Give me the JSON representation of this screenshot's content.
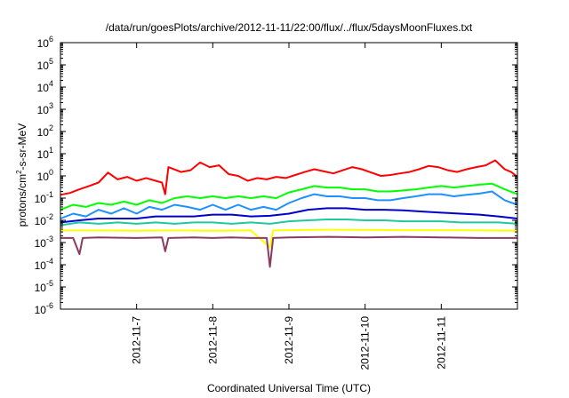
{
  "chart_data": {
    "type": "line",
    "title": "/data/run/goesPlots/archive/2012-11-11/22:00/flux/../flux/5daysMoonFluxes.txt",
    "xlabel": "Coordinated Universal Time (UTC)",
    "ylabel": "protons/cm2-s-sr-MeV",
    "ylabel_parts": {
      "pre": "protons/cm",
      "sup": "2",
      "post": "-s-sr-MeV"
    },
    "xlim": [
      "2012-11-06T00:00",
      "2012-11-12T00:00"
    ],
    "ylim": [
      1e-06,
      1000000.0
    ],
    "yscale": "log",
    "x_ticks": [
      {
        "x": "2012-11-07",
        "label": "2012-11-7"
      },
      {
        "x": "2012-11-08",
        "label": "2012-11-8"
      },
      {
        "x": "2012-11-09",
        "label": "2012-11-9"
      },
      {
        "x": "2012-11-10",
        "label": "2012-11-10"
      },
      {
        "x": "2012-11-11",
        "label": "2012-11-11"
      }
    ],
    "y_ticks": [
      {
        "value": 1e-06,
        "base": "10",
        "exp": "-6"
      },
      {
        "value": 1e-05,
        "base": "10",
        "exp": "-5"
      },
      {
        "value": 0.0001,
        "base": "10",
        "exp": "-4"
      },
      {
        "value": 0.001,
        "base": "10",
        "exp": "-3"
      },
      {
        "value": 0.01,
        "base": "10",
        "exp": "-2"
      },
      {
        "value": 0.1,
        "base": "10",
        "exp": "-1"
      },
      {
        "value": 1,
        "base": "10",
        "exp": "0"
      },
      {
        "value": 10,
        "base": "10",
        "exp": "1"
      },
      {
        "value": 100,
        "base": "10",
        "exp": "2"
      },
      {
        "value": 1000,
        "base": "10",
        "exp": "3"
      },
      {
        "value": 10000,
        "base": "10",
        "exp": "4"
      },
      {
        "value": 100000,
        "base": "10",
        "exp": "5"
      },
      {
        "value": 1000000,
        "base": "10",
        "exp": "6"
      }
    ],
    "grid": false,
    "legend": "none",
    "series": [
      {
        "color": "#ff0000",
        "points": [
          [
            "2012-11-06T00:00",
            0.14
          ],
          [
            "2012-11-06T03:00",
            0.17
          ],
          [
            "2012-11-06T06:00",
            0.25
          ],
          [
            "2012-11-06T09:00",
            0.35
          ],
          [
            "2012-11-06T12:00",
            0.5
          ],
          [
            "2012-11-06T15:00",
            1.4
          ],
          [
            "2012-11-06T18:00",
            0.7
          ],
          [
            "2012-11-06T21:00",
            0.9
          ],
          [
            "2012-11-07T00:00",
            0.6
          ],
          [
            "2012-11-07T03:00",
            0.8
          ],
          [
            "2012-11-07T06:00",
            0.6
          ],
          [
            "2012-11-07T08:00",
            0.5
          ],
          [
            "2012-11-07T09:00",
            0.15
          ],
          [
            "2012-11-07T10:00",
            2.5
          ],
          [
            "2012-11-07T14:00",
            1.5
          ],
          [
            "2012-11-07T17:00",
            1.8
          ],
          [
            "2012-11-07T20:00",
            4.0
          ],
          [
            "2012-11-07T23:00",
            2.5
          ],
          [
            "2012-11-08T02:00",
            3.0
          ],
          [
            "2012-11-08T05:00",
            1.2
          ],
          [
            "2012-11-08T08:00",
            1.0
          ],
          [
            "2012-11-08T11:00",
            0.6
          ],
          [
            "2012-11-08T14:00",
            0.8
          ],
          [
            "2012-11-08T17:00",
            0.7
          ],
          [
            "2012-11-08T20:00",
            0.9
          ],
          [
            "2012-11-08T23:00",
            0.8
          ],
          [
            "2012-11-09T02:00",
            1.1
          ],
          [
            "2012-11-09T05:00",
            1.5
          ],
          [
            "2012-11-09T08:00",
            2.0
          ],
          [
            "2012-11-09T11:00",
            1.6
          ],
          [
            "2012-11-09T14:00",
            1.3
          ],
          [
            "2012-11-09T17:00",
            1.8
          ],
          [
            "2012-11-09T20:00",
            2.5
          ],
          [
            "2012-11-09T23:00",
            2.0
          ],
          [
            "2012-11-10T02:00",
            1.4
          ],
          [
            "2012-11-10T05:00",
            1.0
          ],
          [
            "2012-11-10T08:00",
            1.1
          ],
          [
            "2012-11-10T11:00",
            1.3
          ],
          [
            "2012-11-10T14:00",
            1.5
          ],
          [
            "2012-11-10T17:00",
            2.0
          ],
          [
            "2012-11-10T20:00",
            2.8
          ],
          [
            "2012-11-10T23:00",
            2.5
          ],
          [
            "2012-11-11T02:00",
            1.8
          ],
          [
            "2012-11-11T05:00",
            1.5
          ],
          [
            "2012-11-11T08:00",
            2.0
          ],
          [
            "2012-11-11T11:00",
            2.5
          ],
          [
            "2012-11-11T14:00",
            3.0
          ],
          [
            "2012-11-11T17:00",
            5.0
          ],
          [
            "2012-11-11T20:00",
            2.0
          ],
          [
            "2012-11-11T22:00",
            1.5
          ],
          [
            "2012-11-12T00:00",
            0.9
          ]
        ]
      },
      {
        "color": "#00ff00",
        "points": [
          [
            "2012-11-06T00:00",
            0.03
          ],
          [
            "2012-11-06T04:00",
            0.05
          ],
          [
            "2012-11-06T08:00",
            0.04
          ],
          [
            "2012-11-06T12:00",
            0.06
          ],
          [
            "2012-11-06T16:00",
            0.05
          ],
          [
            "2012-11-06T20:00",
            0.07
          ],
          [
            "2012-11-07T00:00",
            0.05
          ],
          [
            "2012-11-07T04:00",
            0.08
          ],
          [
            "2012-11-07T08:00",
            0.06
          ],
          [
            "2012-11-07T12:00",
            0.1
          ],
          [
            "2012-11-07T16:00",
            0.12
          ],
          [
            "2012-11-07T20:00",
            0.1
          ],
          [
            "2012-11-08T00:00",
            0.12
          ],
          [
            "2012-11-08T04:00",
            0.1
          ],
          [
            "2012-11-08T08:00",
            0.12
          ],
          [
            "2012-11-08T12:00",
            0.1
          ],
          [
            "2012-11-08T16:00",
            0.12
          ],
          [
            "2012-11-08T20:00",
            0.1
          ],
          [
            "2012-11-09T00:00",
            0.18
          ],
          [
            "2012-11-09T04:00",
            0.25
          ],
          [
            "2012-11-09T08:00",
            0.35
          ],
          [
            "2012-11-09T12:00",
            0.3
          ],
          [
            "2012-11-09T16:00",
            0.3
          ],
          [
            "2012-11-09T20:00",
            0.25
          ],
          [
            "2012-11-10T00:00",
            0.25
          ],
          [
            "2012-11-10T04:00",
            0.2
          ],
          [
            "2012-11-10T08:00",
            0.2
          ],
          [
            "2012-11-10T12:00",
            0.22
          ],
          [
            "2012-11-10T16:00",
            0.25
          ],
          [
            "2012-11-10T20:00",
            0.3
          ],
          [
            "2012-11-11T00:00",
            0.35
          ],
          [
            "2012-11-11T04:00",
            0.3
          ],
          [
            "2012-11-11T08:00",
            0.35
          ],
          [
            "2012-11-11T12:00",
            0.4
          ],
          [
            "2012-11-11T16:00",
            0.45
          ],
          [
            "2012-11-11T20:00",
            0.25
          ],
          [
            "2012-11-12T00:00",
            0.15
          ]
        ]
      },
      {
        "color": "#1e90ff",
        "points": [
          [
            "2012-11-06T00:00",
            0.012
          ],
          [
            "2012-11-06T04:00",
            0.02
          ],
          [
            "2012-11-06T08:00",
            0.015
          ],
          [
            "2012-11-06T12:00",
            0.03
          ],
          [
            "2012-11-06T16:00",
            0.02
          ],
          [
            "2012-11-06T20:00",
            0.035
          ],
          [
            "2012-11-07T00:00",
            0.02
          ],
          [
            "2012-11-07T04:00",
            0.04
          ],
          [
            "2012-11-07T08:00",
            0.03
          ],
          [
            "2012-11-07T12:00",
            0.05
          ],
          [
            "2012-11-07T16:00",
            0.04
          ],
          [
            "2012-11-07T20:00",
            0.03
          ],
          [
            "2012-11-08T00:00",
            0.05
          ],
          [
            "2012-11-08T04:00",
            0.03
          ],
          [
            "2012-11-08T08:00",
            0.05
          ],
          [
            "2012-11-08T12:00",
            0.03
          ],
          [
            "2012-11-08T16:00",
            0.04
          ],
          [
            "2012-11-08T20:00",
            0.03
          ],
          [
            "2012-11-09T00:00",
            0.06
          ],
          [
            "2012-11-09T04:00",
            0.1
          ],
          [
            "2012-11-09T08:00",
            0.15
          ],
          [
            "2012-11-09T12:00",
            0.12
          ],
          [
            "2012-11-09T16:00",
            0.12
          ],
          [
            "2012-11-09T20:00",
            0.1
          ],
          [
            "2012-11-10T00:00",
            0.1
          ],
          [
            "2012-11-10T04:00",
            0.08
          ],
          [
            "2012-11-10T08:00",
            0.08
          ],
          [
            "2012-11-10T12:00",
            0.1
          ],
          [
            "2012-11-10T16:00",
            0.12
          ],
          [
            "2012-11-10T20:00",
            0.15
          ],
          [
            "2012-11-11T00:00",
            0.15
          ],
          [
            "2012-11-11T04:00",
            0.12
          ],
          [
            "2012-11-11T08:00",
            0.14
          ],
          [
            "2012-11-11T12:00",
            0.16
          ],
          [
            "2012-11-11T16:00",
            0.2
          ],
          [
            "2012-11-11T20:00",
            0.08
          ],
          [
            "2012-11-12T00:00",
            0.05
          ]
        ]
      },
      {
        "color": "#0000cd",
        "points": [
          [
            "2012-11-06T00:00",
            0.008
          ],
          [
            "2012-11-06T06:00",
            0.01
          ],
          [
            "2012-11-06T12:00",
            0.012
          ],
          [
            "2012-11-06T18:00",
            0.012
          ],
          [
            "2012-11-07T00:00",
            0.012
          ],
          [
            "2012-11-07T06:00",
            0.015
          ],
          [
            "2012-11-07T12:00",
            0.015
          ],
          [
            "2012-11-07T18:00",
            0.015
          ],
          [
            "2012-11-08T00:00",
            0.018
          ],
          [
            "2012-11-08T06:00",
            0.018
          ],
          [
            "2012-11-08T12:00",
            0.015
          ],
          [
            "2012-11-08T18:00",
            0.016
          ],
          [
            "2012-11-09T00:00",
            0.02
          ],
          [
            "2012-11-09T06:00",
            0.03
          ],
          [
            "2012-11-09T12:00",
            0.035
          ],
          [
            "2012-11-09T18:00",
            0.035
          ],
          [
            "2012-11-10T00:00",
            0.03
          ],
          [
            "2012-11-10T06:00",
            0.03
          ],
          [
            "2012-11-10T12:00",
            0.028
          ],
          [
            "2012-11-10T18:00",
            0.025
          ],
          [
            "2012-11-11T00:00",
            0.022
          ],
          [
            "2012-11-11T06:00",
            0.02
          ],
          [
            "2012-11-11T12:00",
            0.018
          ],
          [
            "2012-11-11T18:00",
            0.015
          ],
          [
            "2012-11-12T00:00",
            0.012
          ]
        ]
      },
      {
        "color": "#20c8a0",
        "points": [
          [
            "2012-11-06T00:00",
            0.006
          ],
          [
            "2012-11-06T06:00",
            0.008
          ],
          [
            "2012-11-06T12:00",
            0.007
          ],
          [
            "2012-11-06T18:00",
            0.008
          ],
          [
            "2012-11-07T00:00",
            0.007
          ],
          [
            "2012-11-07T06:00",
            0.008
          ],
          [
            "2012-11-07T12:00",
            0.007
          ],
          [
            "2012-11-07T18:00",
            0.008
          ],
          [
            "2012-11-08T00:00",
            0.008
          ],
          [
            "2012-11-08T06:00",
            0.007
          ],
          [
            "2012-11-08T12:00",
            0.008
          ],
          [
            "2012-11-08T18:00",
            0.007
          ],
          [
            "2012-11-09T00:00",
            0.009
          ],
          [
            "2012-11-09T06:00",
            0.01
          ],
          [
            "2012-11-09T12:00",
            0.011
          ],
          [
            "2012-11-09T18:00",
            0.011
          ],
          [
            "2012-11-10T00:00",
            0.01
          ],
          [
            "2012-11-10T06:00",
            0.01
          ],
          [
            "2012-11-10T12:00",
            0.009
          ],
          [
            "2012-11-10T18:00",
            0.009
          ],
          [
            "2012-11-11T00:00",
            0.009
          ],
          [
            "2012-11-11T06:00",
            0.008
          ],
          [
            "2012-11-11T12:00",
            0.008
          ],
          [
            "2012-11-11T18:00",
            0.008
          ],
          [
            "2012-11-12T00:00",
            0.007
          ]
        ]
      },
      {
        "color": "#ffff00",
        "points": [
          [
            "2012-11-06T00:00",
            0.0035
          ],
          [
            "2012-11-06T12:00",
            0.0035
          ],
          [
            "2012-11-07T00:00",
            0.0034
          ],
          [
            "2012-11-07T12:00",
            0.0035
          ],
          [
            "2012-11-08T00:00",
            0.0034
          ],
          [
            "2012-11-08T12:00",
            0.0035
          ],
          [
            "2012-11-08T18:00",
            0.0006
          ],
          [
            "2012-11-08T19:00",
            0.0035
          ],
          [
            "2012-11-09T00:00",
            0.0036
          ],
          [
            "2012-11-09T12:00",
            0.0038
          ],
          [
            "2012-11-10T00:00",
            0.0037
          ],
          [
            "2012-11-10T12:00",
            0.0036
          ],
          [
            "2012-11-11T00:00",
            0.0036
          ],
          [
            "2012-11-11T12:00",
            0.0035
          ],
          [
            "2012-11-12T00:00",
            0.0034
          ]
        ]
      },
      {
        "color": "#8b3a62",
        "points": [
          [
            "2012-11-06T00:00",
            0.0016
          ],
          [
            "2012-11-06T04:00",
            0.0016
          ],
          [
            "2012-11-06T06:00",
            0.0003
          ],
          [
            "2012-11-06T07:00",
            0.0016
          ],
          [
            "2012-11-06T12:00",
            0.0017
          ],
          [
            "2012-11-07T00:00",
            0.0016
          ],
          [
            "2012-11-07T08:00",
            0.0017
          ],
          [
            "2012-11-07T09:00",
            0.0004
          ],
          [
            "2012-11-07T10:00",
            0.0016
          ],
          [
            "2012-11-07T18:00",
            0.0017
          ],
          [
            "2012-11-08T00:00",
            0.0016
          ],
          [
            "2012-11-08T06:00",
            0.0017
          ],
          [
            "2012-11-08T12:00",
            0.0016
          ],
          [
            "2012-11-08T17:00",
            0.0016
          ],
          [
            "2012-11-08T18:00",
            8e-05
          ],
          [
            "2012-11-08T19:00",
            0.0016
          ],
          [
            "2012-11-09T00:00",
            0.0017
          ],
          [
            "2012-11-09T12:00",
            0.0018
          ],
          [
            "2012-11-10T00:00",
            0.0017
          ],
          [
            "2012-11-10T12:00",
            0.0018
          ],
          [
            "2012-11-11T00:00",
            0.0017
          ],
          [
            "2012-11-11T12:00",
            0.0016
          ],
          [
            "2012-11-12T00:00",
            0.0016
          ]
        ]
      }
    ]
  }
}
